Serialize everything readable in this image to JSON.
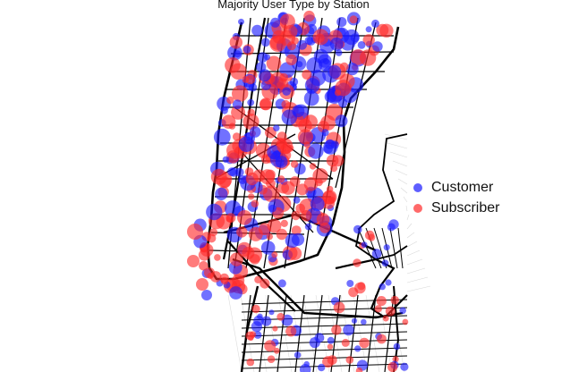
{
  "title": "Majority User Type by Station",
  "legend": [
    {
      "label": "Customer",
      "color": "#1a1aff"
    },
    {
      "label": "Subscriber",
      "color": "#ff2a2a"
    }
  ],
  "colors": {
    "customer": "#1a1aff",
    "subscriber": "#ff2a2a",
    "road": "#000000",
    "background": "#ffffff"
  }
}
